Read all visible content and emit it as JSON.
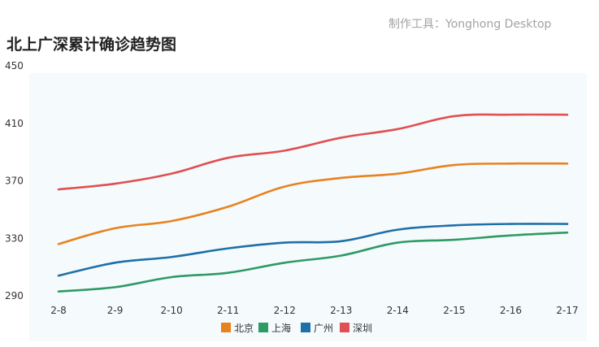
{
  "header": {
    "credit": "制作工具：Yonghong Desktop"
  },
  "chart_data": {
    "type": "line",
    "title": "北上广深累计确诊趋势图",
    "xlabel": "",
    "ylabel": "",
    "categories": [
      "2-8",
      "2-9",
      "2-10",
      "2-11",
      "2-12",
      "2-13",
      "2-14",
      "2-15",
      "2-16",
      "2-17"
    ],
    "ylim": [
      290,
      450
    ],
    "yticks": [
      290,
      330,
      370,
      410,
      450
    ],
    "grid": false,
    "legend_position": "bottom-center",
    "series": [
      {
        "name": "北京",
        "color": "#e8821f",
        "values": [
          326,
          337,
          342,
          352,
          366,
          372,
          375,
          381,
          382,
          382
        ]
      },
      {
        "name": "上海",
        "color": "#2e9a64",
        "values": [
          293,
          296,
          303,
          306,
          313,
          318,
          327,
          329,
          332,
          334
        ]
      },
      {
        "name": "广州",
        "color": "#1f6fa8",
        "values": [
          304,
          313,
          317,
          323,
          327,
          328,
          336,
          339,
          340,
          340
        ]
      },
      {
        "name": "深圳",
        "color": "#e04f52",
        "values": [
          364,
          368,
          375,
          386,
          391,
          400,
          406,
          415,
          416,
          416
        ]
      }
    ]
  }
}
